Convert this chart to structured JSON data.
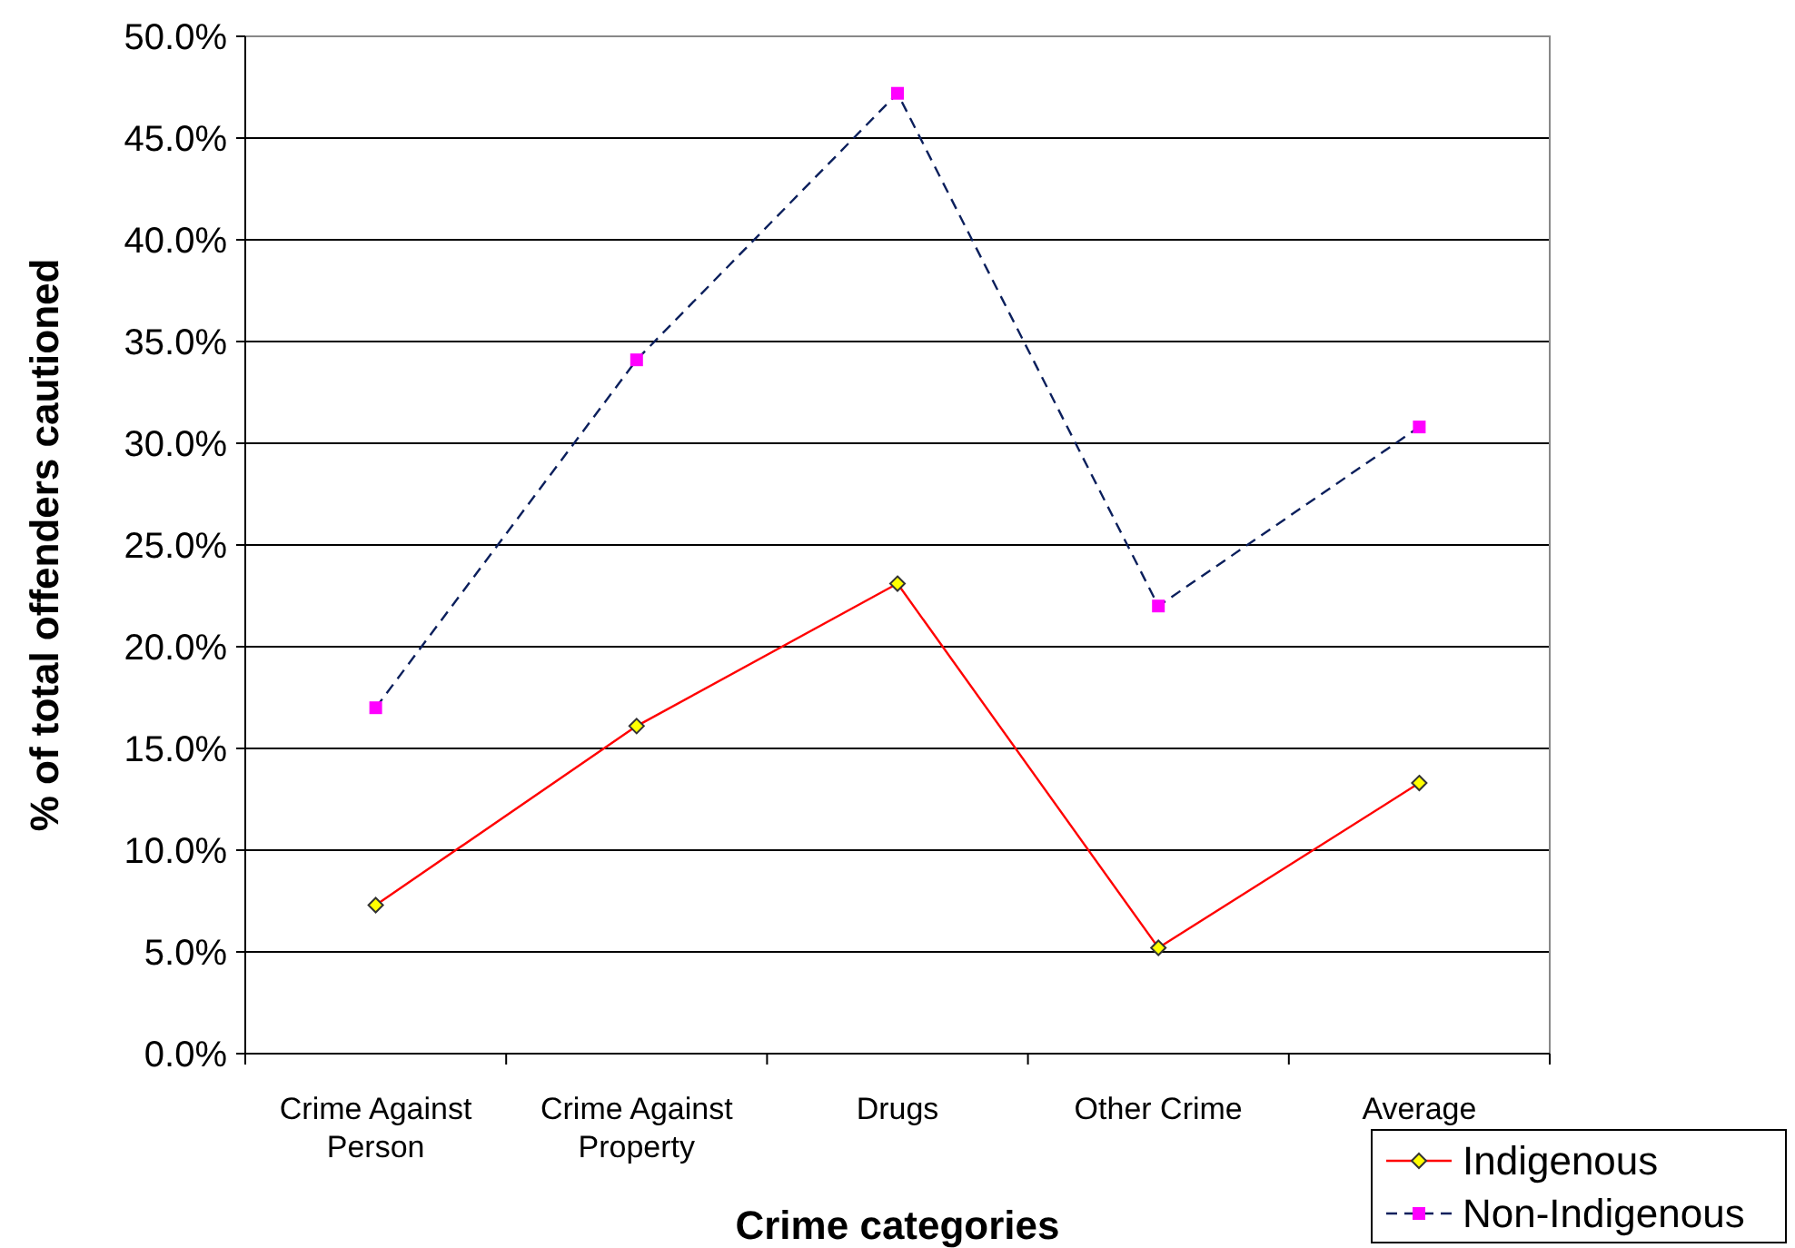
{
  "chart_data": {
    "type": "line",
    "xlabel": "Crime categories",
    "ylabel": "% of total offenders cautioned",
    "categories": [
      "Crime Against Person",
      "Crime Against Property",
      "Drugs",
      "Other Crime",
      "Average"
    ],
    "series": [
      {
        "name": "Indigenous",
        "color": "#ff0000",
        "colors": [
          "#ffff00",
          "#ffff00",
          "#ffff00",
          "#ffff00",
          "#ffff00"
        ],
        "marker": "diamond",
        "line_style": "solid",
        "values": [
          7.3,
          16.1,
          23.1,
          5.2,
          13.3
        ]
      },
      {
        "name": "Non-Indigenous",
        "color": "#0b1f5c",
        "colors": [
          "#ff00ff",
          "#ff00ff",
          "#ff00ff",
          "#ff00ff",
          "#ff00ff"
        ],
        "marker": "square",
        "line_style": "dashed",
        "values": [
          17.0,
          34.1,
          47.2,
          22.0,
          30.8
        ]
      }
    ],
    "ylim": [
      0,
      50
    ],
    "yticks": [
      {
        "value": 0,
        "label": "0.0%"
      },
      {
        "value": 5,
        "label": "5.0%"
      },
      {
        "value": 10,
        "label": "10.0%"
      },
      {
        "value": 15,
        "label": "15.0%"
      },
      {
        "value": 20,
        "label": "20.0%"
      },
      {
        "value": 25,
        "label": "25.0%"
      },
      {
        "value": 30,
        "label": "30.0%"
      },
      {
        "value": 35,
        "label": "35.0%"
      },
      {
        "value": 40,
        "label": "40.0%"
      },
      {
        "value": 45,
        "label": "45.0%"
      },
      {
        "value": 50,
        "label": "50.0%"
      }
    ],
    "grid": "y",
    "legend": "bottom right"
  }
}
